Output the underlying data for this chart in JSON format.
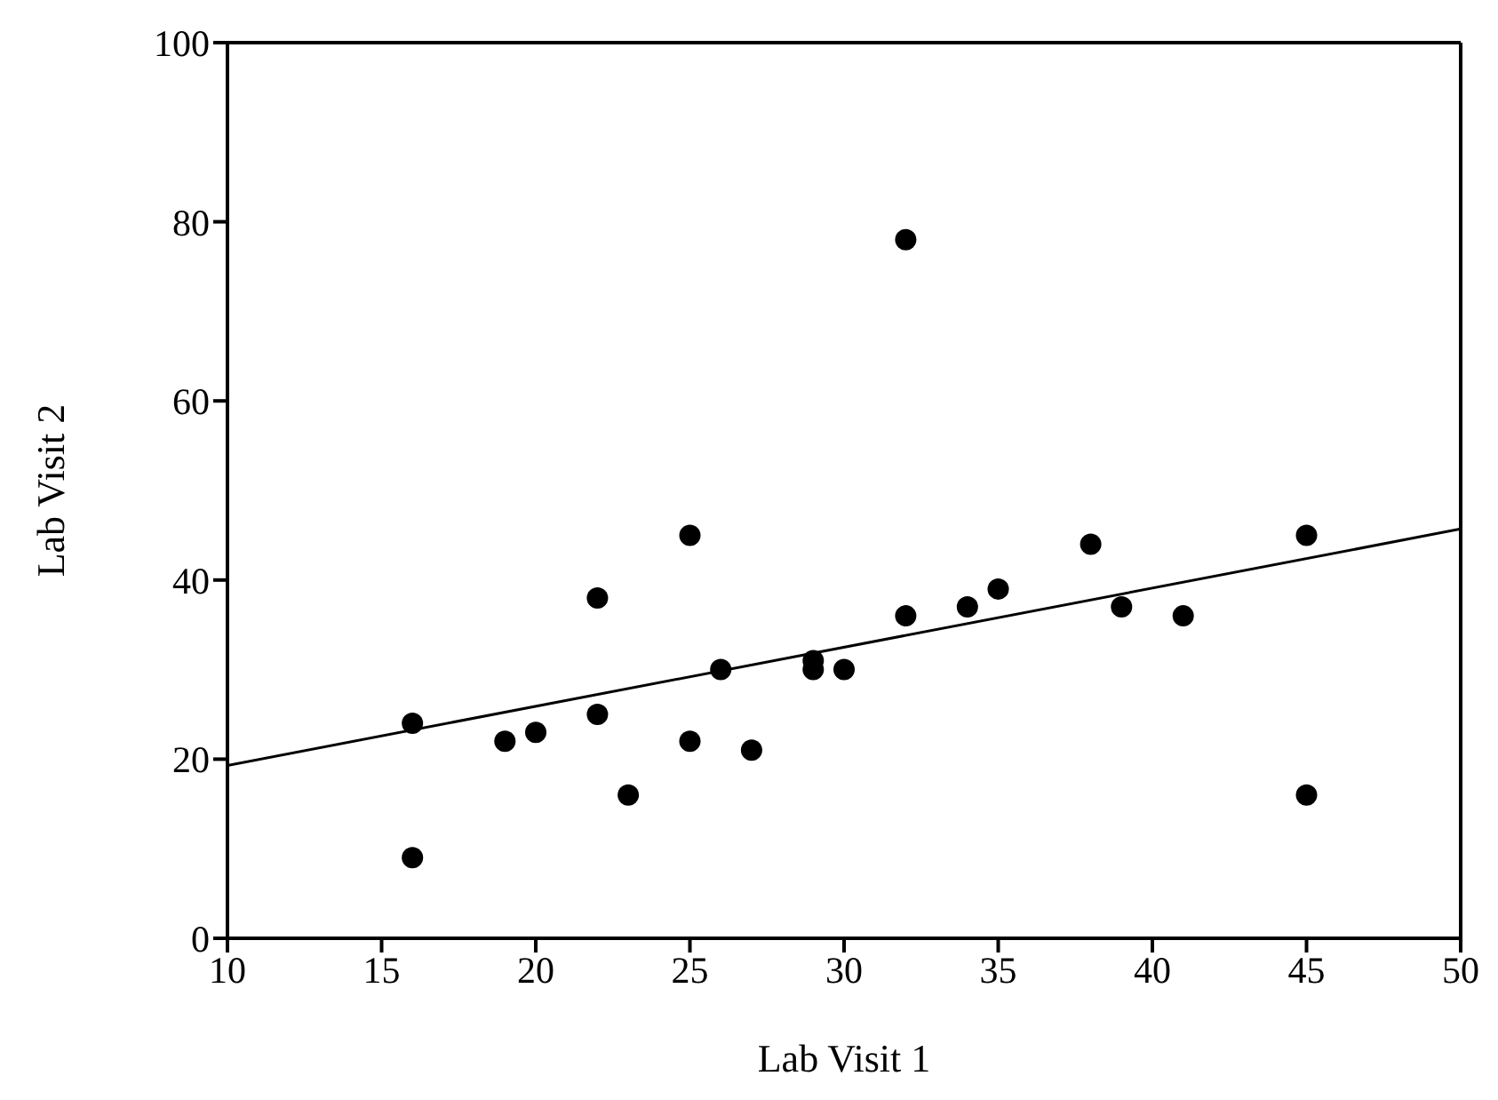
{
  "chart_data": {
    "type": "scatter",
    "xlabel": "Lab Visit 1",
    "ylabel": "Lab Visit 2",
    "xlim": [
      10,
      50
    ],
    "xticks": [
      10,
      15,
      20,
      25,
      30,
      35,
      40,
      45,
      50
    ],
    "ylim": [
      0,
      100
    ],
    "yticks": [
      0,
      20,
      40,
      60,
      80,
      100
    ],
    "marker": "circle",
    "series": [
      {
        "color": "#000000",
        "x": [
          16,
          16,
          19,
          20,
          22,
          22,
          23,
          25,
          25,
          26,
          27,
          29,
          29,
          30,
          32,
          32,
          34,
          35,
          38,
          39,
          41,
          45,
          45
        ],
        "values": [
          24,
          9,
          22,
          23,
          38,
          25,
          16,
          45,
          22,
          30,
          21,
          31,
          30,
          30,
          78,
          36,
          37,
          39,
          44,
          37,
          36,
          45,
          16
        ]
      },
      {
        "type": "line",
        "color": "#000000",
        "marker": "none",
        "line_style": "solid",
        "x": [
          10,
          50
        ],
        "values": [
          19.3,
          45.7
        ]
      }
    ]
  }
}
